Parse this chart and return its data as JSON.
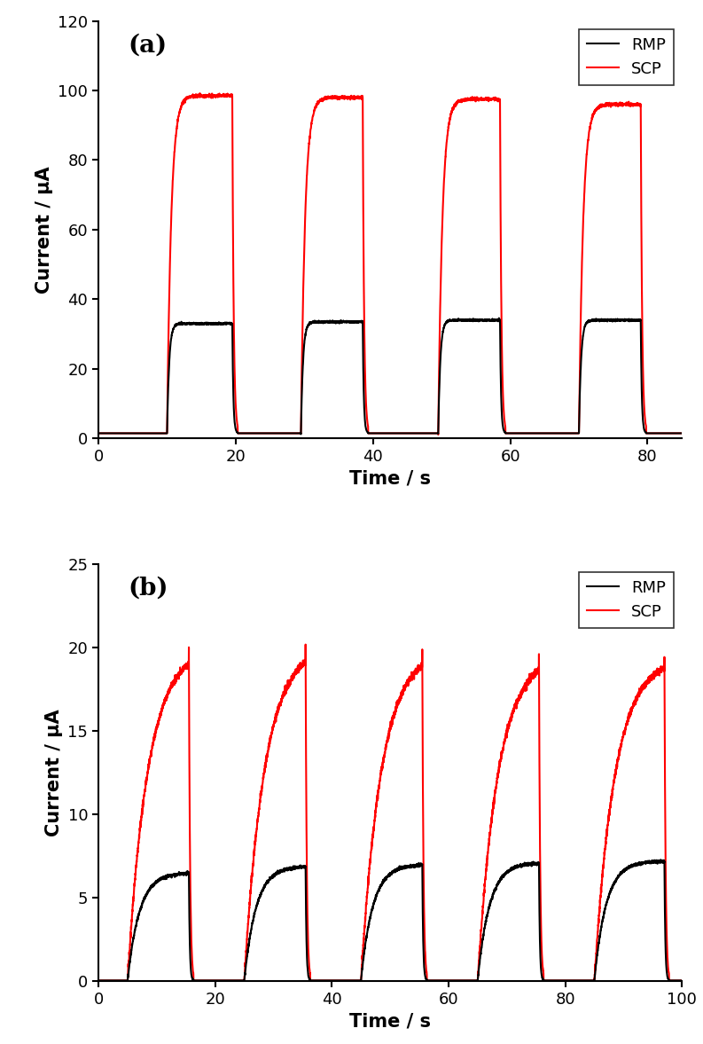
{
  "panel_a": {
    "title": "(a)",
    "xlabel": "Time / s",
    "ylabel": "Current / μA",
    "xlim": [
      0,
      85
    ],
    "ylim": [
      0,
      120
    ],
    "xticks": [
      0,
      20,
      40,
      60,
      80
    ],
    "yticks": [
      0,
      20,
      40,
      60,
      80,
      100,
      120
    ],
    "rmp_color": "#000000",
    "scp_color": "#ff0000",
    "rmp_baseline": 1.5,
    "scp_baseline": 1.5,
    "pulses": [
      {
        "on": 10.0,
        "off": 19.5,
        "rmp_level": 33.0,
        "scp_level": 98.5
      },
      {
        "on": 29.5,
        "off": 38.5,
        "rmp_level": 33.5,
        "scp_level": 98.0
      },
      {
        "on": 49.5,
        "off": 58.5,
        "rmp_level": 34.0,
        "scp_level": 97.5
      },
      {
        "on": 70.0,
        "off": 79.0,
        "rmp_level": 34.0,
        "scp_level": 96.0
      }
    ],
    "scp_rise_tau": 0.6,
    "rmp_rise_tau": 0.3,
    "scp_noise": 0.8,
    "rmp_noise": 0.5,
    "scp_fall_tau": 0.2,
    "rmp_fall_tau": 0.15
  },
  "panel_b": {
    "title": "(b)",
    "xlabel": "Time / s",
    "ylabel": "Current / μA",
    "xlim": [
      0,
      100
    ],
    "ylim": [
      0,
      25
    ],
    "xticks": [
      0,
      20,
      40,
      60,
      80,
      100
    ],
    "yticks": [
      0,
      5,
      10,
      15,
      20,
      25
    ],
    "rmp_color": "#000000",
    "scp_color": "#ff0000",
    "rmp_baseline": 0.05,
    "scp_baseline": 0.05,
    "pulses": [
      {
        "on": 5.0,
        "off": 15.5,
        "rmp_level": 6.5,
        "scp_level": 20.0
      },
      {
        "on": 25.0,
        "off": 35.5,
        "rmp_level": 6.9,
        "scp_level": 20.1
      },
      {
        "on": 45.0,
        "off": 55.5,
        "rmp_level": 7.0,
        "scp_level": 19.9
      },
      {
        "on": 65.0,
        "off": 75.5,
        "rmp_level": 7.1,
        "scp_level": 19.6
      },
      {
        "on": 85.0,
        "off": 97.0,
        "rmp_level": 7.2,
        "scp_level": 19.4
      }
    ],
    "scp_rise_tau": 3.5,
    "rmp_rise_tau": 2.0,
    "scp_noise": 0.35,
    "rmp_noise": 0.15,
    "scp_fall_tau": 0.2,
    "rmp_fall_tau": 0.15
  },
  "legend_rmp": "RMP",
  "legend_scp": "SCP",
  "line_width": 1.5,
  "bg_color": "#ffffff",
  "axis_color": "#000000",
  "tick_fontsize": 13,
  "label_fontsize": 15,
  "title_fontsize": 20
}
